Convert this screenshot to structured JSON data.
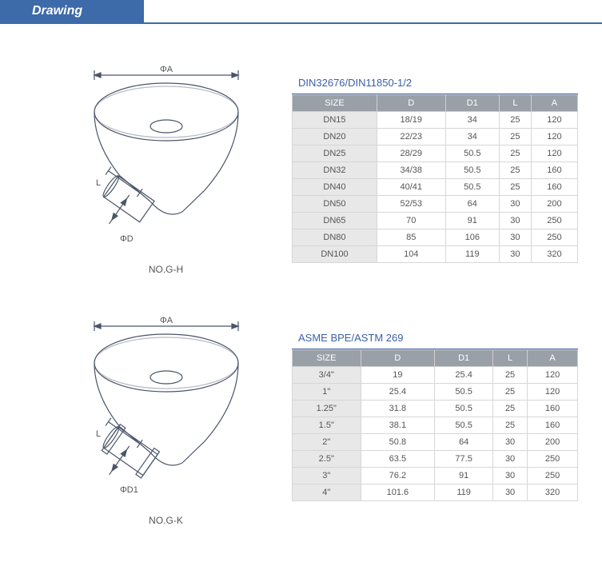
{
  "banner": {
    "title": "Drawing",
    "bg": "#3d6aa8",
    "border": "#3d6aa8"
  },
  "drawings": [
    {
      "dim_top": "ΦA",
      "dim_side": "ΦD",
      "dim_l": "L",
      "label": "NO.G-H",
      "side_type": "plain"
    },
    {
      "dim_top": "ΦA",
      "dim_side": "ΦD1",
      "dim_l": "L",
      "label": "NO.G-K",
      "side_type": "clamp"
    }
  ],
  "tables": [
    {
      "title": "DIN32676/DIN11850-1/2",
      "header_bg": "#9aa0a8",
      "columns": [
        "SIZE",
        "D",
        "D1",
        "L",
        "A"
      ],
      "rows": [
        [
          "DN15",
          "18/19",
          "34",
          "25",
          "120"
        ],
        [
          "DN20",
          "22/23",
          "34",
          "25",
          "120"
        ],
        [
          "DN25",
          "28/29",
          "50.5",
          "25",
          "120"
        ],
        [
          "DN32",
          "34/38",
          "50.5",
          "25",
          "160"
        ],
        [
          "DN40",
          "40/41",
          "50.5",
          "25",
          "160"
        ],
        [
          "DN50",
          "52/53",
          "64",
          "30",
          "200"
        ],
        [
          "DN65",
          "70",
          "91",
          "30",
          "250"
        ],
        [
          "DN80",
          "85",
          "106",
          "30",
          "250"
        ],
        [
          "DN100",
          "104",
          "119",
          "30",
          "320"
        ]
      ]
    },
    {
      "title": "ASME BPE/ASTM 269",
      "header_bg": "#9aa0a8",
      "columns": [
        "SIZE",
        "D",
        "D1",
        "L",
        "A"
      ],
      "rows": [
        [
          "3/4\"",
          "19",
          "25.4",
          "25",
          "120"
        ],
        [
          "1\"",
          "25.4",
          "50.5",
          "25",
          "120"
        ],
        [
          "1.25\"",
          "31.8",
          "50.5",
          "25",
          "160"
        ],
        [
          "1.5\"",
          "38.1",
          "50.5",
          "25",
          "160"
        ],
        [
          "2\"",
          "50.8",
          "64",
          "30",
          "200"
        ],
        [
          "2.5\"",
          "63.5",
          "77.5",
          "30",
          "250"
        ],
        [
          "3\"",
          "76.2",
          "91",
          "30",
          "250"
        ],
        [
          "4\"",
          "101.6",
          "119",
          "30",
          "320"
        ]
      ]
    }
  ],
  "drawing_stroke": "#4a5568"
}
